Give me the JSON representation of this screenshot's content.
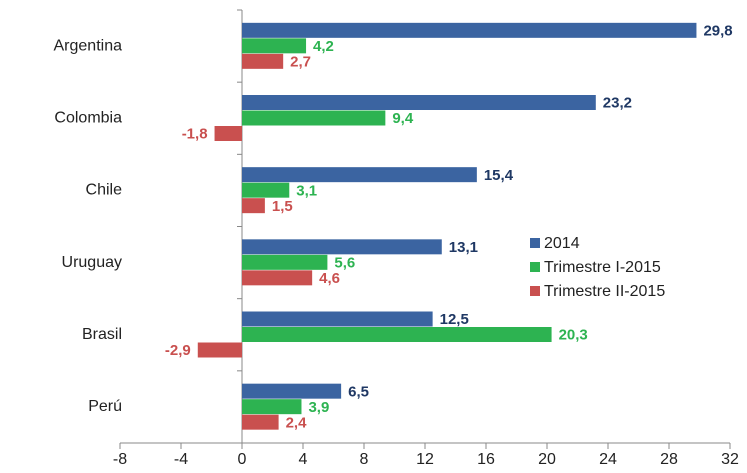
{
  "chart_data": {
    "type": "barh",
    "categories": [
      "Argentina",
      "Colombia",
      "Chile",
      "Uruguay",
      "Brasil",
      "Perú"
    ],
    "series": [
      {
        "name": "2014",
        "color": "#3b64a1",
        "label_color": "#1f3864",
        "values": [
          29.8,
          23.2,
          15.4,
          13.1,
          12.5,
          6.5
        ],
        "value_labels": [
          "29,8",
          "23,2",
          "15,4",
          "13,1",
          "12,5",
          "6,5"
        ]
      },
      {
        "name": "Trimestre I-2015",
        "color": "#2db351",
        "label_color": "#2db351",
        "values": [
          4.2,
          9.4,
          3.1,
          5.6,
          20.3,
          3.9
        ],
        "value_labels": [
          "4,2",
          "9,4",
          "3,1",
          "5,6",
          "20,3",
          "3,9"
        ]
      },
      {
        "name": "Trimestre II-2015",
        "color": "#c9504f",
        "label_color": "#c9504f",
        "values": [
          2.7,
          -1.8,
          1.5,
          4.6,
          -2.9,
          2.4
        ],
        "value_labels": [
          "2,7",
          "-1,8",
          "1,5",
          "4,6",
          "-2,9",
          "2,4"
        ]
      }
    ],
    "xlim": [
      -8,
      32
    ],
    "xticks": [
      -8,
      -4,
      0,
      4,
      8,
      12,
      16,
      20,
      24,
      28,
      32
    ],
    "legend": "right",
    "grid": false
  }
}
